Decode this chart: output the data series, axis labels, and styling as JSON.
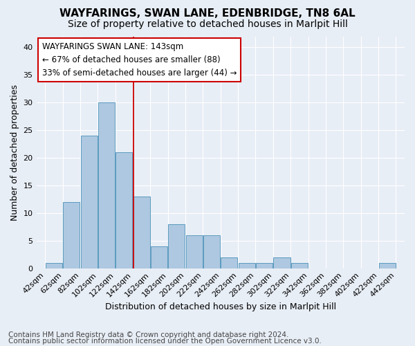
{
  "title": "WAYFARINGS, SWAN LANE, EDENBRIDGE, TN8 6AL",
  "subtitle": "Size of property relative to detached houses in Marlpit Hill",
  "xlabel": "Distribution of detached houses by size in Marlpit Hill",
  "ylabel": "Number of detached properties",
  "footnote1": "Contains HM Land Registry data © Crown copyright and database right 2024.",
  "footnote2": "Contains public sector information licensed under the Open Government Licence v3.0.",
  "annotation_line1": "WAYFARINGS SWAN LANE: 143sqm",
  "annotation_line2": "← 67% of detached houses are smaller (88)",
  "annotation_line3": "33% of semi-detached houses are larger (44) →",
  "property_size": 143,
  "bins": [
    42,
    62,
    82,
    102,
    122,
    142,
    162,
    182,
    202,
    222,
    242,
    262,
    282,
    302,
    322,
    342,
    362,
    382,
    402,
    422,
    442
  ],
  "counts": [
    1,
    12,
    24,
    30,
    21,
    13,
    4,
    8,
    6,
    6,
    2,
    1,
    1,
    2,
    1,
    0,
    0,
    0,
    0,
    1
  ],
  "bar_color": "#adc8e0",
  "bar_edge_color": "#5b9bbf",
  "vline_color": "#cc0000",
  "ylim_max": 42,
  "yticks": [
    0,
    5,
    10,
    15,
    20,
    25,
    30,
    35,
    40
  ],
  "bg_color": "#e8eef6",
  "annotation_box_color": "#ffffff",
  "annotation_box_edge": "#cc0000",
  "title_fontsize": 11,
  "subtitle_fontsize": 10,
  "axis_label_fontsize": 9,
  "tick_fontsize": 8,
  "annotation_fontsize": 8.5,
  "footnote_fontsize": 7.5
}
